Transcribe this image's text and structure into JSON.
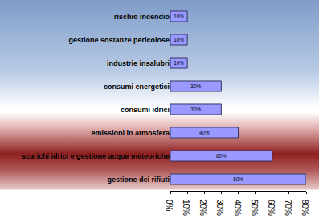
{
  "chart_data": {
    "type": "bar",
    "orientation": "horizontal",
    "categories": [
      "rischio incendio",
      "gestione sostanze pericolose",
      "industrie insalubri",
      "consumi energetici",
      "consumi idrici",
      "emissioni in atmosfera",
      "scarichi idrici e gestione acque meteoriche",
      "gestione dei rifiuti"
    ],
    "values": [
      10,
      10,
      10,
      30,
      30,
      40,
      60,
      80
    ],
    "value_labels": [
      "10%",
      "10%",
      "10%",
      "30%",
      "30%",
      "40%",
      "60%",
      "80%"
    ],
    "color": "#9999ff",
    "xlim": [
      0,
      80
    ],
    "xticks": [
      {
        "value": 0,
        "label": "0%"
      },
      {
        "value": 10,
        "label": "10%"
      },
      {
        "value": 20,
        "label": "20%"
      },
      {
        "value": 30,
        "label": "30%"
      },
      {
        "value": 40,
        "label": "40%"
      },
      {
        "value": 50,
        "label": "50%"
      },
      {
        "value": 60,
        "label": "60%"
      },
      {
        "value": 70,
        "label": "70%"
      },
      {
        "value": 80,
        "label": "80%"
      }
    ],
    "data_labels": true,
    "grid": false
  }
}
